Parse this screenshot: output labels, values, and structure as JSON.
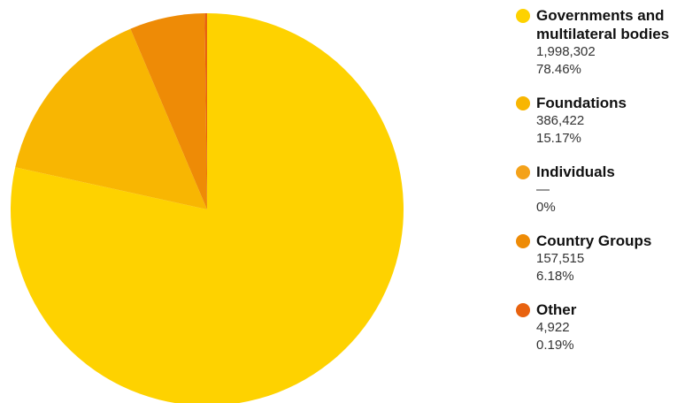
{
  "chart_data": {
    "type": "pie",
    "start": "top-clockwise",
    "slices": [
      {
        "label": "Governments and multilateral bodies",
        "value": 1998302,
        "value_text": "1,998,302",
        "percent": 78.46,
        "percent_text": "78.46%",
        "color": "#FED200"
      },
      {
        "label": "Foundations",
        "value": 386422,
        "value_text": "386,422",
        "percent": 15.17,
        "percent_text": "15.17%",
        "color": "#F8B602"
      },
      {
        "label": "Individuals",
        "value": 0,
        "value_text": "—",
        "percent": 0,
        "percent_text": "0%",
        "color": "#F4A21A"
      },
      {
        "label": "Country Groups",
        "value": 157515,
        "value_text": "157,515",
        "percent": 6.18,
        "percent_text": "6.18%",
        "color": "#EE8B06"
      },
      {
        "label": "Other",
        "value": 4922,
        "value_text": "4,922",
        "percent": 0.19,
        "percent_text": "0.19%",
        "color": "#E8620F"
      }
    ],
    "legend_position": "right"
  }
}
